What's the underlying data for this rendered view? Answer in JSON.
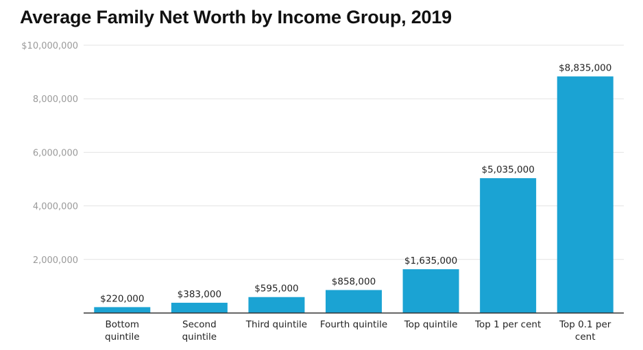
{
  "chart_data": {
    "type": "bar",
    "title": "Average Family Net Worth by Income Group, 2019",
    "categories": [
      [
        "Bottom",
        "quintile"
      ],
      [
        "Second",
        "quintile"
      ],
      [
        "Third quintile"
      ],
      [
        "Fourth quintile"
      ],
      [
        "Top quintile"
      ],
      [
        "Top 1 per cent"
      ],
      [
        "Top 0.1 per",
        "cent"
      ]
    ],
    "values": [
      220000,
      383000,
      595000,
      858000,
      1635000,
      5035000,
      8835000
    ],
    "data_labels": [
      "$220,000",
      "$383,000",
      "$595,000",
      "$858,000",
      "$1,635,000",
      "$5,035,000",
      "$8,835,000"
    ],
    "yticks": [
      {
        "value": 2000000,
        "label": "2,000,000"
      },
      {
        "value": 4000000,
        "label": "4,000,000"
      },
      {
        "value": 6000000,
        "label": "6,000,000"
      },
      {
        "value": 8000000,
        "label": "8,000,000"
      },
      {
        "value": 10000000,
        "label": "$10,000,000"
      }
    ],
    "ylim": [
      0,
      10000000
    ],
    "grid": true,
    "bar_color": "#1ba3d3",
    "xlabel": "",
    "ylabel": ""
  }
}
